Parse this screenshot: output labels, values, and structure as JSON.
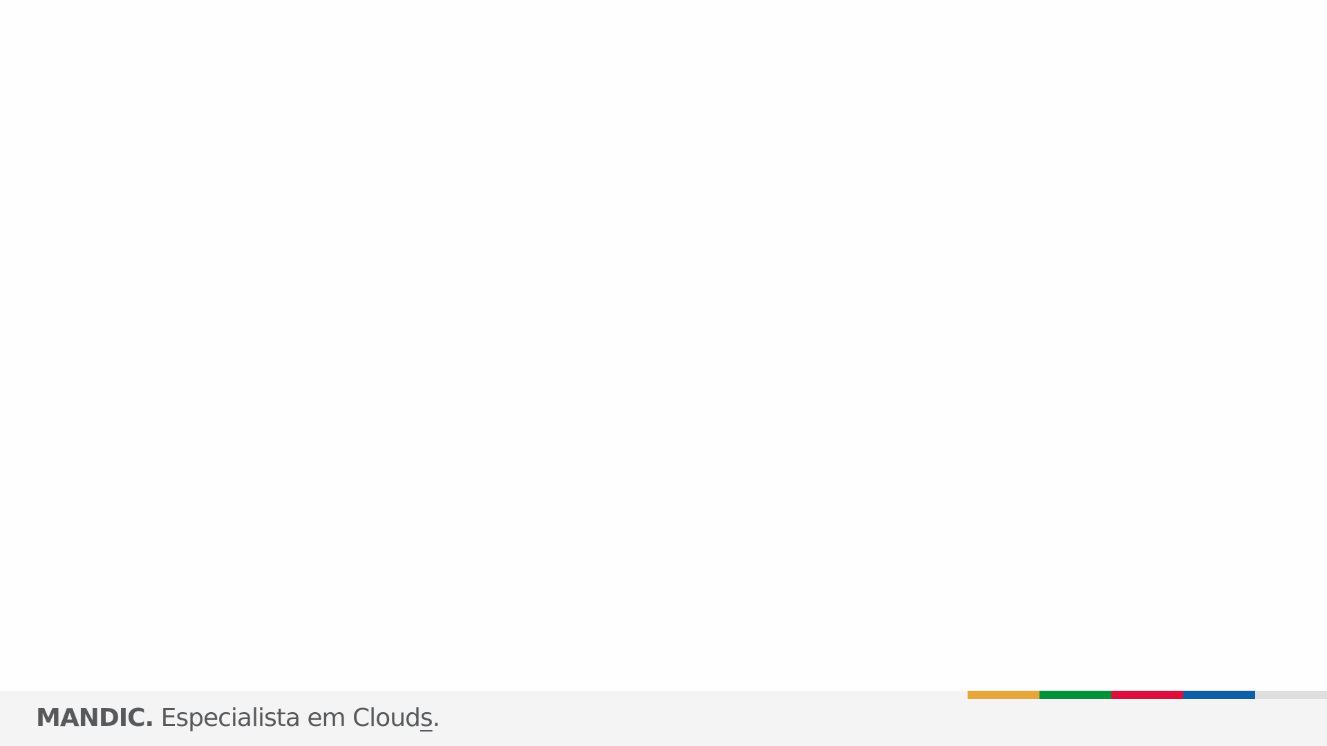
{
  "footer": {
    "brand": "MANDIC.",
    "tagline_start": " Especialista em Cloud",
    "tagline_underlined": "s",
    "tagline_end": "."
  },
  "colors": {
    "background": "#fefefe",
    "footer_background": "#f4f4f4",
    "text": "#58595b",
    "strip": [
      "#e6a63a",
      "#00913a",
      "#dd0f3d",
      "#0e5ea8",
      "#dedede"
    ]
  }
}
